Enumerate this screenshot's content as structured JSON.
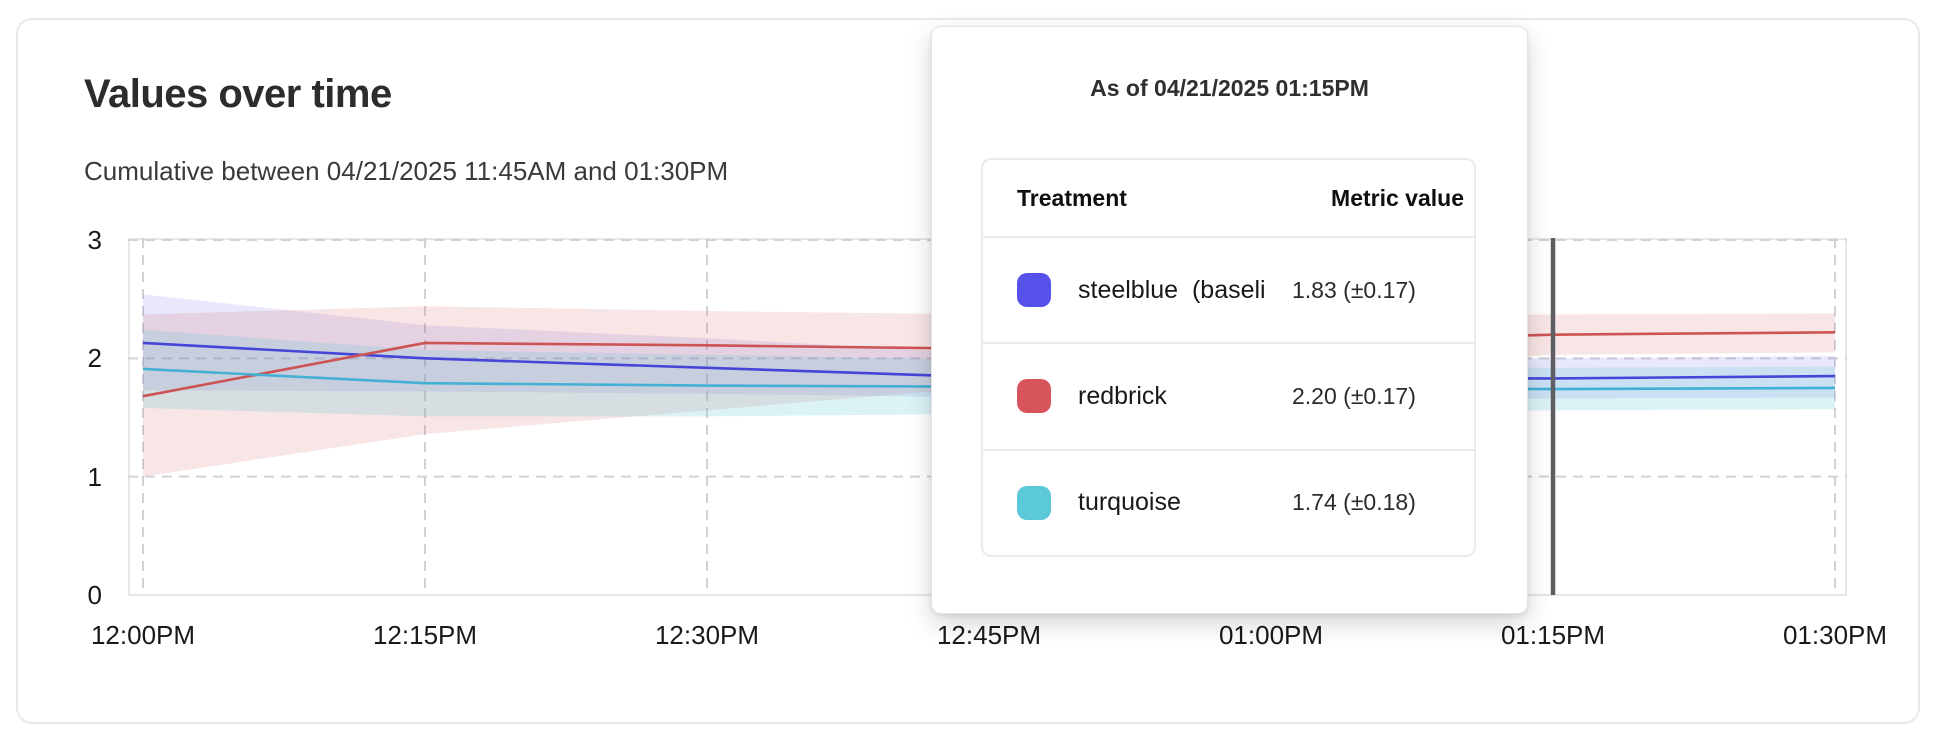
{
  "card": {
    "title": "Values over time",
    "subtitle": "Cumulative between 04/21/2025 11:45AM and 01:30PM"
  },
  "tooltip": {
    "title": "As of 04/21/2025 01:15PM",
    "columns": [
      "Treatment",
      "Metric value"
    ],
    "rows": [
      {
        "label": "steelblue  (baseli",
        "swatch_color": "#5551e9",
        "value": "1.83 (±0.17)"
      },
      {
        "label": "redbrick",
        "swatch_color": "#d8545c",
        "value": "2.20 (±0.17)"
      },
      {
        "label": "turquoise",
        "swatch_color": "#5cc9d9",
        "value": "1.74 (±0.18)"
      }
    ]
  },
  "chart_data": {
    "type": "line",
    "title": "Values over time",
    "subtitle": "Cumulative between 04/21/2025 11:45AM and 01:30PM",
    "x": [
      "12:00PM",
      "12:15PM",
      "12:30PM",
      "12:45PM",
      "01:00PM",
      "01:15PM",
      "01:30PM"
    ],
    "xlabel": "",
    "ylabel": "",
    "ylim": [
      0,
      3
    ],
    "yticks": [
      0,
      1,
      2,
      3
    ],
    "grid": "dashed",
    "legend": "none (values shown in hover tooltip)",
    "crosshair_x": "01:15PM",
    "crosshair_color": "#5f5f63",
    "series": [
      {
        "id": "steelblue",
        "name": "steelblue (baseline)",
        "color": "#4745d8",
        "band_color": "rgba(101,97,231,0.15)",
        "values": [
          2.13,
          2.0,
          1.92,
          1.84,
          1.83,
          1.83,
          1.85
        ],
        "lower": [
          1.73,
          1.72,
          1.7,
          1.67,
          1.66,
          1.66,
          1.67
        ],
        "upper": [
          2.54,
          2.28,
          2.17,
          2.04,
          2.01,
          2.0,
          2.02
        ]
      },
      {
        "id": "redbrick",
        "name": "redbrick",
        "color": "#cd5454",
        "band_color": "rgba(213,93,97,0.16)",
        "values": [
          1.68,
          2.13,
          2.11,
          2.08,
          2.14,
          2.2,
          2.22
        ],
        "lower": [
          1.0,
          1.36,
          1.56,
          1.76,
          1.92,
          2.03,
          2.05
        ],
        "upper": [
          2.37,
          2.44,
          2.4,
          2.37,
          2.36,
          2.37,
          2.38
        ]
      },
      {
        "id": "turquoise",
        "name": "turquoise",
        "color": "#44b0d4",
        "band_color": "rgba(96,200,216,0.22)",
        "values": [
          1.91,
          1.79,
          1.77,
          1.76,
          1.75,
          1.74,
          1.75
        ],
        "lower": [
          1.58,
          1.51,
          1.51,
          1.53,
          1.55,
          1.56,
          1.57
        ],
        "upper": [
          2.24,
          2.07,
          2.03,
          1.99,
          1.94,
          1.92,
          1.93
        ]
      }
    ]
  }
}
